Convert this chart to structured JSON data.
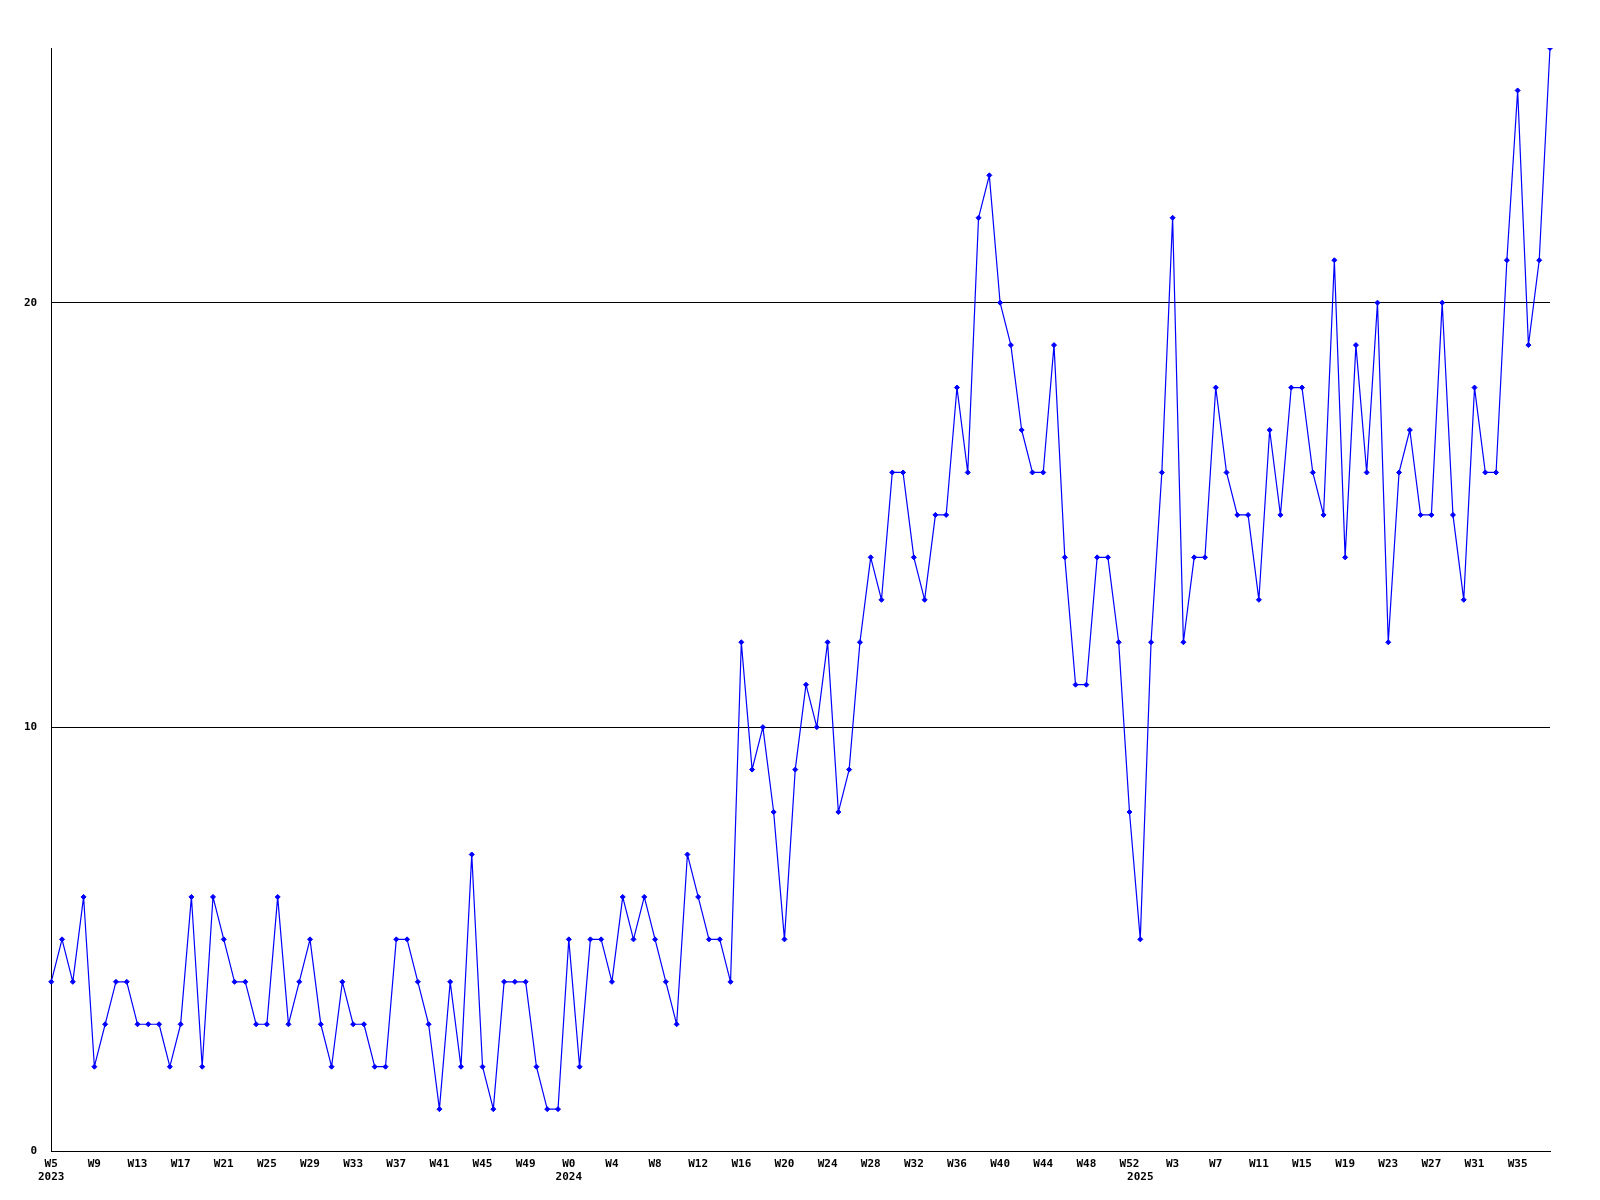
{
  "chart_data": {
    "type": "line",
    "categories": [
      "W5\n2023",
      null,
      null,
      null,
      "W9",
      null,
      null,
      null,
      "W13",
      null,
      null,
      null,
      "W17",
      null,
      null,
      null,
      "W21",
      null,
      null,
      null,
      "W25",
      null,
      null,
      null,
      "W29",
      null,
      null,
      null,
      "W33",
      null,
      null,
      null,
      "W37",
      null,
      null,
      null,
      "W41",
      null,
      null,
      null,
      "W45",
      null,
      null,
      null,
      "W49",
      null,
      null,
      null,
      "W0\n2024",
      null,
      null,
      null,
      "W4",
      null,
      null,
      null,
      "W8",
      null,
      null,
      null,
      "W12",
      null,
      null,
      null,
      "W16",
      null,
      null,
      null,
      "W20",
      null,
      null,
      null,
      "W24",
      null,
      null,
      null,
      "W28",
      null,
      null,
      null,
      "W32",
      null,
      null,
      null,
      "W36",
      null,
      null,
      null,
      "W40",
      null,
      null,
      null,
      "W44",
      null,
      null,
      null,
      "W48",
      null,
      null,
      null,
      "W52",
      "\n2025",
      null,
      null,
      "W3",
      null,
      null,
      null,
      "W7",
      null,
      null,
      null,
      "W11",
      null,
      null,
      null,
      "W15",
      null,
      null,
      null,
      "W19",
      null,
      null,
      null,
      "W23",
      null,
      null,
      null,
      "W27",
      null,
      null,
      null,
      "W31",
      null,
      null,
      null,
      "W35",
      null,
      null,
      null
    ],
    "series": [
      {
        "color": "#0000ff",
        "values": [
          4,
          5,
          4,
          6,
          2,
          3,
          4,
          4,
          3,
          3,
          3,
          2,
          3,
          6,
          2,
          6,
          5,
          4,
          4,
          3,
          3,
          6,
          3,
          4,
          5,
          3,
          2,
          4,
          3,
          3,
          2,
          2,
          5,
          5,
          4,
          3,
          1,
          4,
          2,
          7,
          2,
          1,
          4,
          4,
          4,
          2,
          1,
          1,
          5,
          2,
          5,
          5,
          4,
          6,
          5,
          6,
          5,
          4,
          3,
          7,
          6,
          5,
          5,
          4,
          12,
          9,
          10,
          8,
          5,
          9,
          11,
          10,
          12,
          8,
          9,
          12,
          14,
          13,
          16,
          16,
          14,
          13,
          15,
          15,
          18,
          16,
          22,
          23,
          20,
          19,
          17,
          16,
          16,
          19,
          14,
          11,
          11,
          14,
          14,
          12,
          8,
          5,
          12,
          16,
          22,
          12,
          14,
          14,
          18,
          16,
          15,
          15,
          13,
          17,
          15,
          18,
          18,
          16,
          15,
          21,
          14,
          19,
          16,
          20,
          12,
          16,
          17,
          15,
          15,
          20,
          15,
          13,
          18,
          16,
          16,
          21,
          25,
          19,
          21,
          26
        ]
      }
    ],
    "ylim": [
      0,
      26
    ],
    "yticks": [
      0,
      10,
      20
    ],
    "grid": "y",
    "legend": false,
    "marker": "diamond",
    "line_style": "solid"
  }
}
